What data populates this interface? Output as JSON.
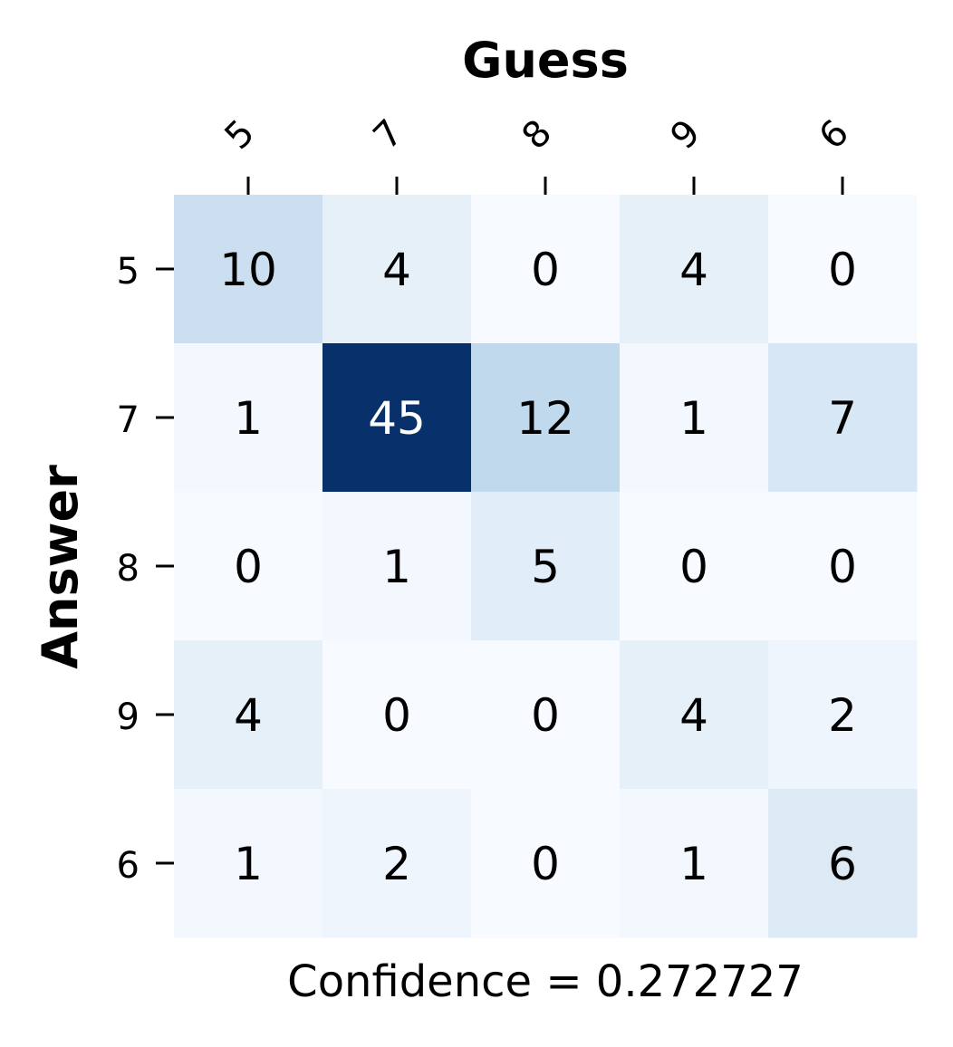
{
  "chart_data": {
    "type": "heatmap",
    "x_title": "Guess",
    "y_title": "Answer",
    "x_categories": [
      "5",
      "7",
      "8",
      "9",
      "6"
    ],
    "y_categories": [
      "5",
      "7",
      "8",
      "9",
      "6"
    ],
    "values": [
      [
        10,
        4,
        0,
        4,
        0
      ],
      [
        1,
        45,
        12,
        1,
        7
      ],
      [
        0,
        1,
        5,
        0,
        0
      ],
      [
        4,
        0,
        0,
        4,
        2
      ],
      [
        1,
        2,
        0,
        1,
        6
      ]
    ],
    "colormap": "Blues",
    "color_low": "#f7fbff",
    "color_high": "#08306b",
    "x_tick_position": "top",
    "colorbar": false,
    "caption": "Confidence = 0.272727"
  }
}
